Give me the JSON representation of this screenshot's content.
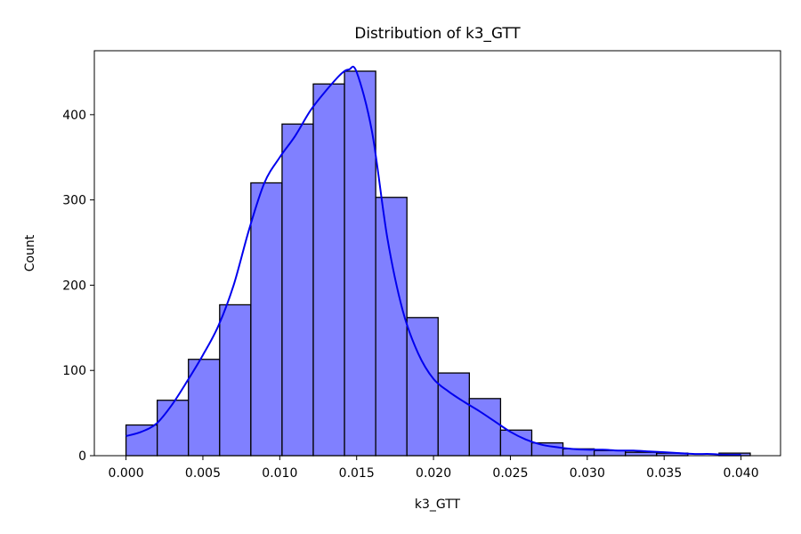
{
  "chart_data": {
    "type": "bar",
    "title": "Distribution of k3_GTT",
    "xlabel": "k3_GTT",
    "ylabel": "Count",
    "xlim": [
      -0.00206,
      0.04257
    ],
    "ylim": [
      0,
      475
    ],
    "xticks": [
      0.0,
      0.005,
      0.01,
      0.015,
      0.02,
      0.025,
      0.03,
      0.035,
      0.04
    ],
    "xtick_labels": [
      "0.000",
      "0.005",
      "0.010",
      "0.015",
      "0.020",
      "0.025",
      "0.030",
      "0.035",
      "0.040"
    ],
    "yticks": [
      0,
      100,
      200,
      300,
      400
    ],
    "ytick_labels": [
      "0",
      "100",
      "200",
      "300",
      "400"
    ],
    "grid": false,
    "bins": {
      "start": 0.0,
      "width": 0.00203,
      "counts": [
        36,
        65,
        113,
        177,
        320,
        389,
        436,
        451,
        303,
        162,
        97,
        67,
        30,
        15,
        8,
        6,
        4,
        3,
        0,
        3
      ]
    },
    "kde": {
      "x": [
        0.0,
        0.001,
        0.002,
        0.003,
        0.004,
        0.005,
        0.006,
        0.007,
        0.008,
        0.009,
        0.01,
        0.011,
        0.012,
        0.013,
        0.014,
        0.0145,
        0.015,
        0.016,
        0.017,
        0.018,
        0.019,
        0.02,
        0.021,
        0.022,
        0.023,
        0.024,
        0.025,
        0.026,
        0.027,
        0.028,
        0.029,
        0.03,
        0.031,
        0.032,
        0.033,
        0.034,
        0.035,
        0.036,
        0.037,
        0.038,
        0.039,
        0.04
      ],
      "y": [
        23,
        28,
        38,
        60,
        88,
        118,
        152,
        200,
        265,
        320,
        350,
        375,
        405,
        428,
        448,
        453,
        450,
        380,
        255,
        170,
        120,
        90,
        75,
        63,
        52,
        40,
        28,
        19,
        13,
        10,
        8,
        7,
        7,
        6,
        6,
        5,
        4,
        3,
        2,
        2,
        1,
        1
      ]
    },
    "colors": {
      "bar_fill": "#8080ff",
      "bar_edge": "#000000",
      "kde_line": "#0000ee",
      "axes": "#000000"
    }
  }
}
